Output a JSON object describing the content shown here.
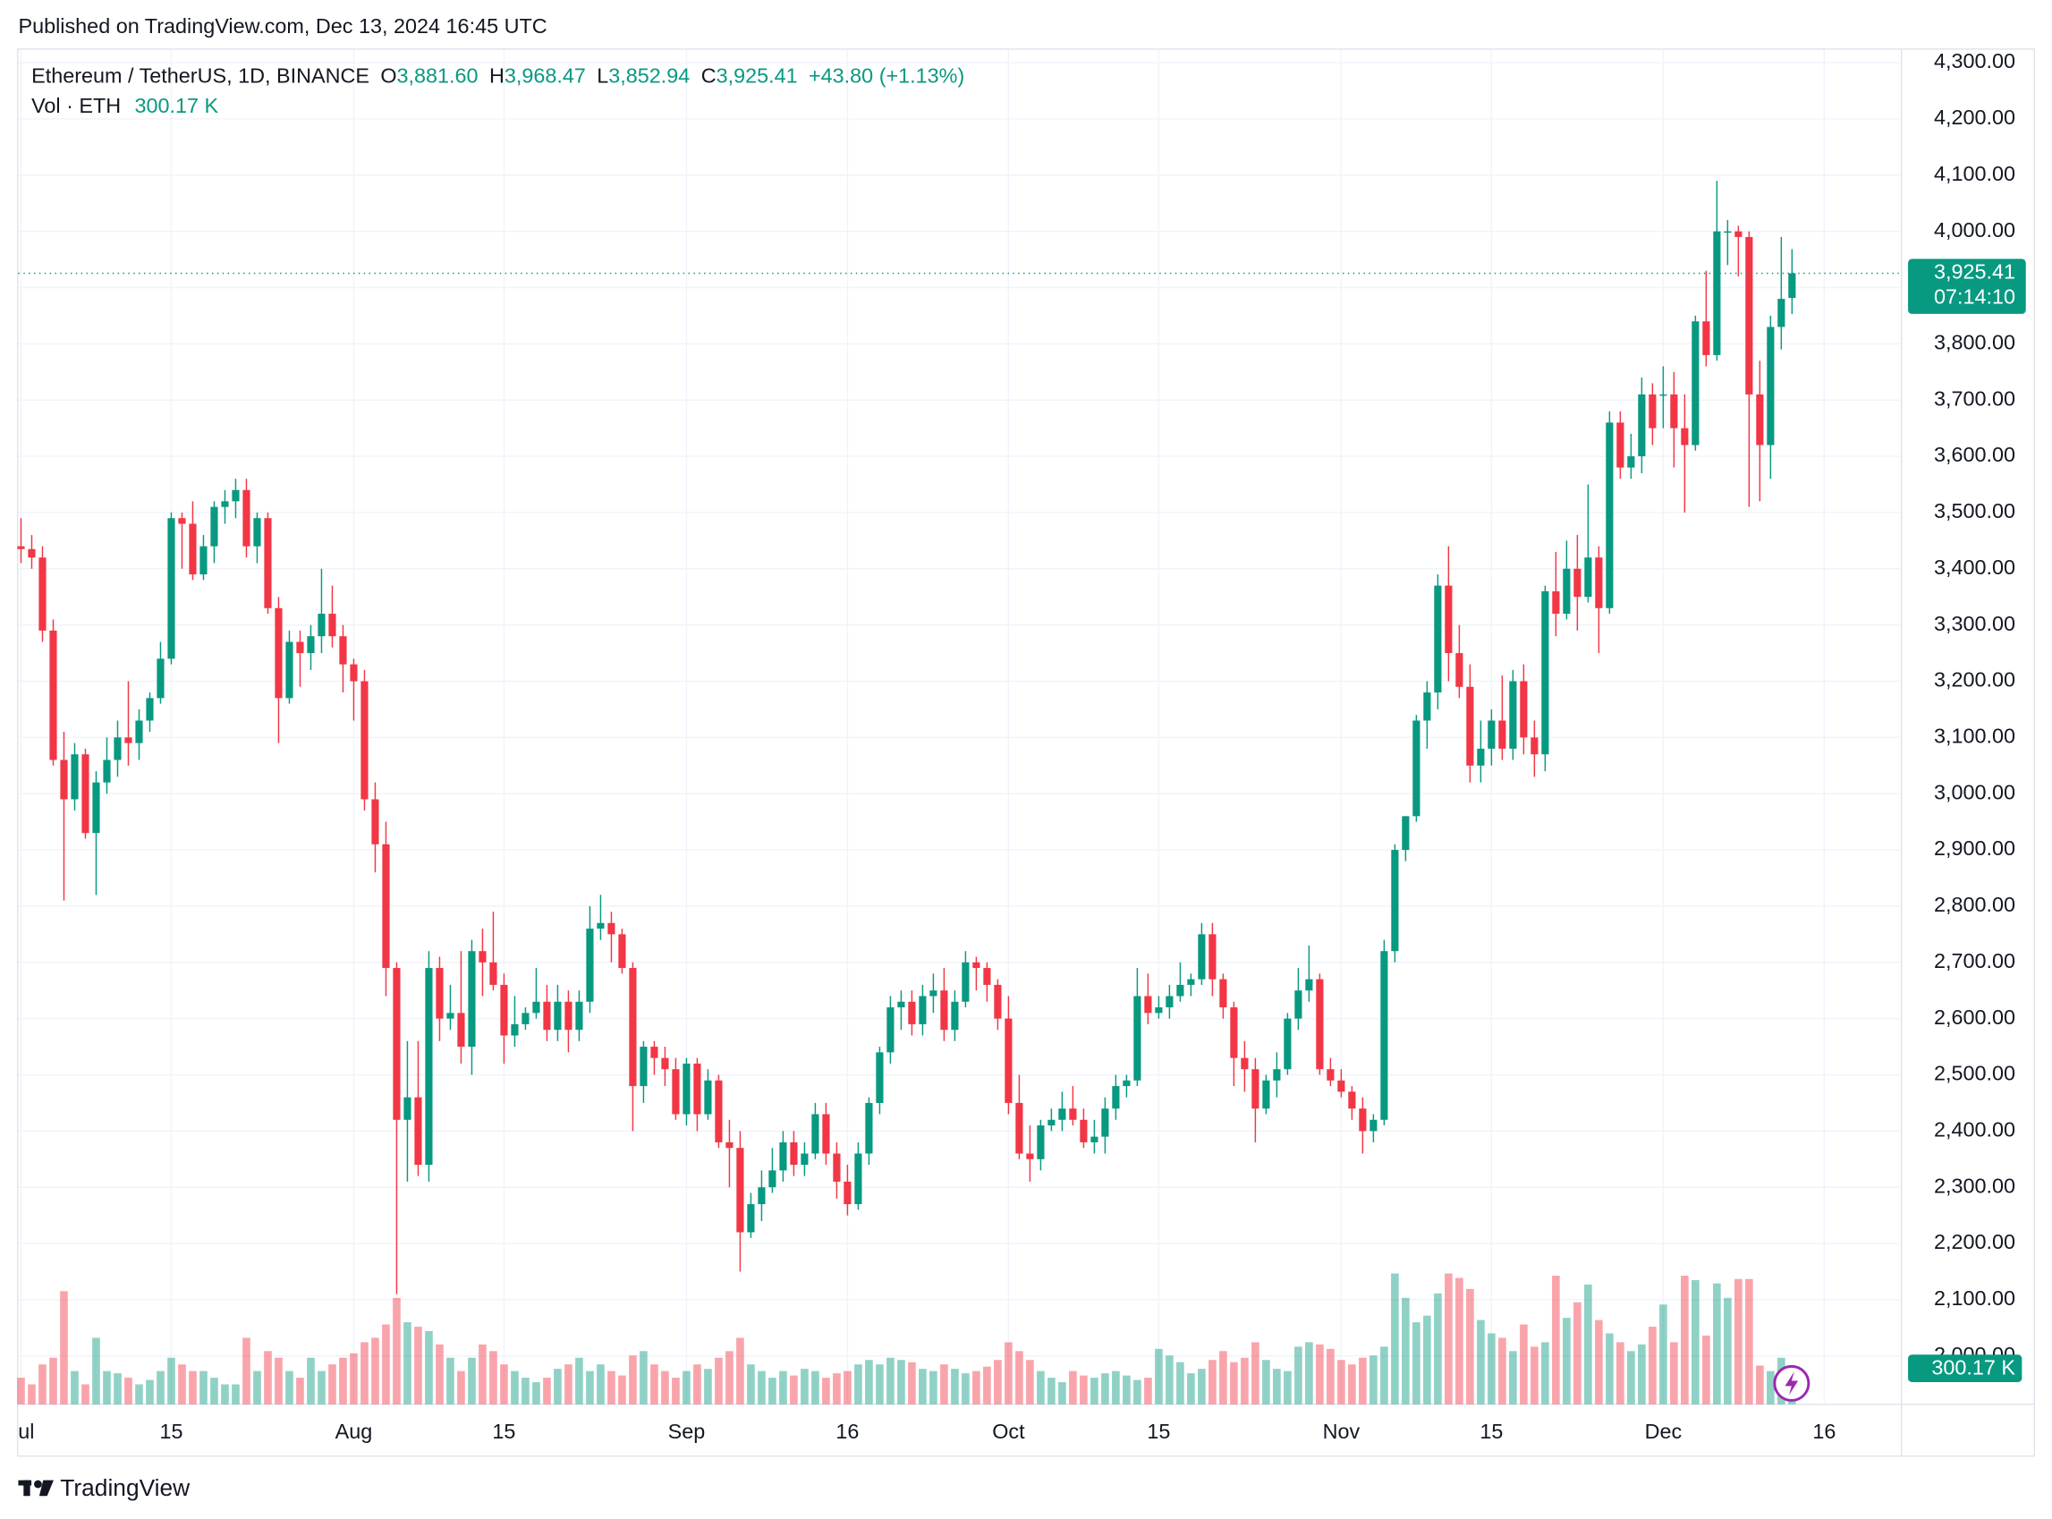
{
  "header": {
    "published": "Published on TradingView.com, Dec 13, 2024 16:45 UTC"
  },
  "legend": {
    "symbol": "Ethereum / TetherUS, 1D, BINANCE",
    "o": "O",
    "open": "3,881.60",
    "h": "H",
    "high": "3,968.47",
    "l": "L",
    "low": "3,852.94",
    "c": "C",
    "close": "3,925.41",
    "change": "+43.80 (+1.13%)",
    "volume_name": "Vol · ETH",
    "volume": "300.17 K"
  },
  "price_tag": {
    "price": "3,925.41",
    "countdown": "07:14:10"
  },
  "volume_tag": "300.17 K",
  "footer": {
    "brand": "TradingView"
  },
  "chart_data": {
    "type": "candlestick",
    "up_color": "#089981",
    "down_color": "#f23645",
    "grid": true,
    "xlim": [
      -0.25,
      175.2
    ],
    "xticks": [
      {
        "value": 0,
        "label": "Jul"
      },
      {
        "value": 14,
        "label": "15"
      },
      {
        "value": 31,
        "label": "Aug"
      },
      {
        "value": 45,
        "label": "15"
      },
      {
        "value": 62,
        "label": "Sep"
      },
      {
        "value": 77,
        "label": "16"
      },
      {
        "value": 92,
        "label": "Oct"
      },
      {
        "value": 106,
        "label": "15"
      },
      {
        "value": 123,
        "label": "Nov"
      },
      {
        "value": 137,
        "label": "15"
      },
      {
        "value": 153,
        "label": "Dec"
      },
      {
        "value": 168,
        "label": "16"
      }
    ],
    "ylim": [
      1914,
      4323
    ],
    "yticks": [
      {
        "value": 2000,
        "label": "2,000.00"
      },
      {
        "value": 2100,
        "label": "2,100.00"
      },
      {
        "value": 2200,
        "label": "2,200.00"
      },
      {
        "value": 2300,
        "label": "2,300.00"
      },
      {
        "value": 2400,
        "label": "2,400.00"
      },
      {
        "value": 2500,
        "label": "2,500.00"
      },
      {
        "value": 2600,
        "label": "2,600.00"
      },
      {
        "value": 2700,
        "label": "2,700.00"
      },
      {
        "value": 2800,
        "label": "2,800.00"
      },
      {
        "value": 2900,
        "label": "2,900.00"
      },
      {
        "value": 3000,
        "label": "3,000.00"
      },
      {
        "value": 3100,
        "label": "3,100.00"
      },
      {
        "value": 3200,
        "label": "3,200.00"
      },
      {
        "value": 3300,
        "label": "3,300.00"
      },
      {
        "value": 3400,
        "label": "3,400.00"
      },
      {
        "value": 3500,
        "label": "3,500.00"
      },
      {
        "value": 3600,
        "label": "3,600.00"
      },
      {
        "value": 3700,
        "label": "3,700.00"
      },
      {
        "value": 3800,
        "label": "3,800.00"
      },
      {
        "value": 3900,
        "label": "3,900.00"
      },
      {
        "value": 4000,
        "label": "4,000.00"
      },
      {
        "value": 4100,
        "label": "4,100.00"
      },
      {
        "value": 4200,
        "label": "4,200.00"
      },
      {
        "value": 4300,
        "label": "4,300.00"
      }
    ],
    "ohlc": [
      [
        3440,
        3490,
        3410,
        3435
      ],
      [
        3435,
        3460,
        3400,
        3420
      ],
      [
        3420,
        3440,
        3270,
        3290
      ],
      [
        3290,
        3310,
        3050,
        3060
      ],
      [
        3060,
        3110,
        2810,
        2990
      ],
      [
        2990,
        3090,
        2970,
        3070
      ],
      [
        3070,
        3080,
        2920,
        2930
      ],
      [
        2930,
        3040,
        2820,
        3020
      ],
      [
        3020,
        3100,
        3000,
        3060
      ],
      [
        3060,
        3130,
        3030,
        3100
      ],
      [
        3100,
        3200,
        3050,
        3090
      ],
      [
        3090,
        3150,
        3060,
        3130
      ],
      [
        3130,
        3180,
        3110,
        3170
      ],
      [
        3170,
        3270,
        3160,
        3240
      ],
      [
        3240,
        3500,
        3230,
        3490
      ],
      [
        3490,
        3500,
        3400,
        3480
      ],
      [
        3480,
        3520,
        3380,
        3390
      ],
      [
        3390,
        3460,
        3380,
        3440
      ],
      [
        3440,
        3520,
        3410,
        3510
      ],
      [
        3510,
        3540,
        3480,
        3520
      ],
      [
        3520,
        3560,
        3490,
        3540
      ],
      [
        3540,
        3560,
        3420,
        3440
      ],
      [
        3440,
        3500,
        3410,
        3490
      ],
      [
        3490,
        3500,
        3320,
        3330
      ],
      [
        3330,
        3350,
        3090,
        3170
      ],
      [
        3170,
        3290,
        3160,
        3270
      ],
      [
        3270,
        3290,
        3190,
        3250
      ],
      [
        3250,
        3300,
        3220,
        3280
      ],
      [
        3280,
        3400,
        3250,
        3320
      ],
      [
        3320,
        3370,
        3260,
        3280
      ],
      [
        3280,
        3300,
        3180,
        3230
      ],
      [
        3230,
        3240,
        3130,
        3200
      ],
      [
        3200,
        3220,
        2970,
        2990
      ],
      [
        2990,
        3020,
        2860,
        2910
      ],
      [
        2910,
        2950,
        2640,
        2690
      ],
      [
        2690,
        2700,
        2110,
        2420
      ],
      [
        2420,
        2560,
        2310,
        2460
      ],
      [
        2460,
        2560,
        2320,
        2340
      ],
      [
        2340,
        2720,
        2310,
        2690
      ],
      [
        2690,
        2710,
        2560,
        2600
      ],
      [
        2600,
        2660,
        2580,
        2610
      ],
      [
        2610,
        2720,
        2520,
        2550
      ],
      [
        2550,
        2740,
        2500,
        2720
      ],
      [
        2720,
        2760,
        2640,
        2700
      ],
      [
        2700,
        2790,
        2650,
        2660
      ],
      [
        2660,
        2680,
        2520,
        2570
      ],
      [
        2570,
        2640,
        2550,
        2590
      ],
      [
        2590,
        2620,
        2580,
        2610
      ],
      [
        2610,
        2690,
        2600,
        2630
      ],
      [
        2630,
        2660,
        2560,
        2580
      ],
      [
        2580,
        2660,
        2560,
        2630
      ],
      [
        2630,
        2650,
        2540,
        2580
      ],
      [
        2580,
        2650,
        2560,
        2630
      ],
      [
        2630,
        2800,
        2610,
        2760
      ],
      [
        2760,
        2820,
        2740,
        2770
      ],
      [
        2770,
        2790,
        2700,
        2750
      ],
      [
        2750,
        2760,
        2680,
        2690
      ],
      [
        2690,
        2700,
        2400,
        2480
      ],
      [
        2480,
        2560,
        2450,
        2550
      ],
      [
        2550,
        2560,
        2500,
        2530
      ],
      [
        2530,
        2550,
        2480,
        2510
      ],
      [
        2510,
        2530,
        2420,
        2430
      ],
      [
        2430,
        2530,
        2410,
        2520
      ],
      [
        2520,
        2530,
        2400,
        2430
      ],
      [
        2430,
        2510,
        2420,
        2490
      ],
      [
        2490,
        2500,
        2370,
        2380
      ],
      [
        2380,
        2420,
        2300,
        2370
      ],
      [
        2370,
        2400,
        2150,
        2220
      ],
      [
        2220,
        2290,
        2210,
        2270
      ],
      [
        2270,
        2330,
        2240,
        2300
      ],
      [
        2300,
        2370,
        2290,
        2330
      ],
      [
        2330,
        2400,
        2310,
        2380
      ],
      [
        2380,
        2400,
        2320,
        2340
      ],
      [
        2340,
        2380,
        2320,
        2360
      ],
      [
        2360,
        2450,
        2350,
        2430
      ],
      [
        2430,
        2450,
        2340,
        2360
      ],
      [
        2360,
        2380,
        2280,
        2310
      ],
      [
        2310,
        2340,
        2250,
        2270
      ],
      [
        2270,
        2380,
        2260,
        2360
      ],
      [
        2360,
        2460,
        2340,
        2450
      ],
      [
        2450,
        2550,
        2430,
        2540
      ],
      [
        2540,
        2640,
        2520,
        2620
      ],
      [
        2620,
        2650,
        2580,
        2630
      ],
      [
        2630,
        2650,
        2570,
        2590
      ],
      [
        2590,
        2660,
        2570,
        2640
      ],
      [
        2640,
        2680,
        2610,
        2650
      ],
      [
        2650,
        2690,
        2560,
        2580
      ],
      [
        2580,
        2650,
        2560,
        2630
      ],
      [
        2630,
        2720,
        2620,
        2700
      ],
      [
        2700,
        2710,
        2650,
        2690
      ],
      [
        2690,
        2700,
        2630,
        2660
      ],
      [
        2660,
        2670,
        2580,
        2600
      ],
      [
        2600,
        2640,
        2430,
        2450
      ],
      [
        2450,
        2500,
        2350,
        2360
      ],
      [
        2360,
        2410,
        2310,
        2350
      ],
      [
        2350,
        2420,
        2330,
        2410
      ],
      [
        2410,
        2440,
        2400,
        2420
      ],
      [
        2420,
        2470,
        2400,
        2440
      ],
      [
        2440,
        2480,
        2410,
        2420
      ],
      [
        2420,
        2440,
        2370,
        2380
      ],
      [
        2380,
        2420,
        2360,
        2390
      ],
      [
        2390,
        2460,
        2360,
        2440
      ],
      [
        2440,
        2500,
        2420,
        2480
      ],
      [
        2480,
        2500,
        2460,
        2490
      ],
      [
        2490,
        2690,
        2480,
        2640
      ],
      [
        2640,
        2680,
        2590,
        2610
      ],
      [
        2610,
        2640,
        2600,
        2620
      ],
      [
        2620,
        2660,
        2600,
        2640
      ],
      [
        2640,
        2700,
        2630,
        2660
      ],
      [
        2660,
        2680,
        2640,
        2670
      ],
      [
        2670,
        2770,
        2660,
        2750
      ],
      [
        2750,
        2770,
        2640,
        2670
      ],
      [
        2670,
        2680,
        2600,
        2620
      ],
      [
        2620,
        2630,
        2480,
        2530
      ],
      [
        2530,
        2560,
        2470,
        2510
      ],
      [
        2510,
        2530,
        2380,
        2440
      ],
      [
        2440,
        2500,
        2430,
        2490
      ],
      [
        2490,
        2540,
        2460,
        2510
      ],
      [
        2510,
        2610,
        2500,
        2600
      ],
      [
        2600,
        2690,
        2580,
        2650
      ],
      [
        2650,
        2730,
        2630,
        2670
      ],
      [
        2670,
        2680,
        2500,
        2510
      ],
      [
        2510,
        2530,
        2480,
        2490
      ],
      [
        2490,
        2510,
        2460,
        2470
      ],
      [
        2470,
        2480,
        2420,
        2440
      ],
      [
        2440,
        2460,
        2360,
        2400
      ],
      [
        2400,
        2430,
        2380,
        2420
      ],
      [
        2420,
        2740,
        2410,
        2720
      ],
      [
        2720,
        2910,
        2700,
        2900
      ],
      [
        2900,
        2960,
        2880,
        2960
      ],
      [
        2960,
        3140,
        2950,
        3130
      ],
      [
        3130,
        3200,
        3080,
        3180
      ],
      [
        3180,
        3390,
        3150,
        3370
      ],
      [
        3370,
        3440,
        3200,
        3250
      ],
      [
        3250,
        3300,
        3170,
        3190
      ],
      [
        3190,
        3230,
        3020,
        3050
      ],
      [
        3050,
        3130,
        3020,
        3080
      ],
      [
        3080,
        3150,
        3050,
        3130
      ],
      [
        3130,
        3210,
        3060,
        3080
      ],
      [
        3080,
        3220,
        3060,
        3200
      ],
      [
        3200,
        3230,
        3070,
        3100
      ],
      [
        3100,
        3130,
        3030,
        3070
      ],
      [
        3070,
        3370,
        3040,
        3360
      ],
      [
        3360,
        3430,
        3280,
        3320
      ],
      [
        3320,
        3450,
        3310,
        3400
      ],
      [
        3400,
        3460,
        3290,
        3350
      ],
      [
        3350,
        3550,
        3340,
        3420
      ],
      [
        3420,
        3440,
        3250,
        3330
      ],
      [
        3330,
        3680,
        3320,
        3660
      ],
      [
        3660,
        3680,
        3560,
        3580
      ],
      [
        3580,
        3640,
        3560,
        3600
      ],
      [
        3600,
        3740,
        3570,
        3710
      ],
      [
        3710,
        3730,
        3620,
        3650
      ],
      [
        3710,
        3760,
        3650,
        3710
      ],
      [
        3710,
        3750,
        3580,
        3650
      ],
      [
        3650,
        3710,
        3500,
        3620
      ],
      [
        3620,
        3850,
        3610,
        3840
      ],
      [
        3840,
        3930,
        3760,
        3780
      ],
      [
        3780,
        4090,
        3770,
        4000
      ],
      [
        4000,
        4020,
        3940,
        4000
      ],
      [
        4000,
        4010,
        3920,
        3990
      ],
      [
        3990,
        4000,
        3510,
        3710
      ],
      [
        3710,
        3770,
        3520,
        3620
      ],
      [
        3620,
        3850,
        3560,
        3830
      ],
      [
        3830,
        3990,
        3790,
        3880
      ],
      [
        3881.6,
        3968.47,
        3852.94,
        3925.41
      ]
    ],
    "volume": [
      240,
      180,
      360,
      420,
      1020,
      300,
      180,
      600,
      300,
      280,
      240,
      180,
      220,
      300,
      420,
      360,
      300,
      300,
      240,
      180,
      180,
      600,
      300,
      480,
      420,
      300,
      240,
      420,
      300,
      360,
      420,
      460,
      560,
      600,
      720,
      960,
      740,
      700,
      660,
      540,
      420,
      300,
      420,
      540,
      480,
      360,
      300,
      240,
      200,
      240,
      320,
      360,
      420,
      300,
      360,
      300,
      260,
      440,
      480,
      360,
      300,
      240,
      300,
      360,
      320,
      420,
      480,
      600,
      360,
      300,
      240,
      300,
      260,
      320,
      300,
      240,
      280,
      300,
      360,
      400,
      360,
      420,
      400,
      380,
      320,
      300,
      360,
      320,
      280,
      300,
      340,
      400,
      560,
      480,
      400,
      300,
      240,
      200,
      300,
      260,
      240,
      280,
      300,
      260,
      220,
      240,
      500,
      440,
      380,
      280,
      320,
      400,
      480,
      380,
      420,
      560,
      400,
      320,
      300,
      520,
      560,
      540,
      500,
      400,
      360,
      420,
      440,
      520,
      1180,
      960,
      740,
      800,
      1000,
      1180,
      1140,
      1040,
      760,
      640,
      600,
      480,
      720,
      520,
      560,
      1160,
      780,
      920,
      1080,
      760,
      640,
      560,
      480,
      540,
      700,
      900,
      560,
      1160,
      1120,
      620,
      1090,
      960,
      1130,
      1130,
      350,
      300,
      420,
      300.17
    ]
  }
}
